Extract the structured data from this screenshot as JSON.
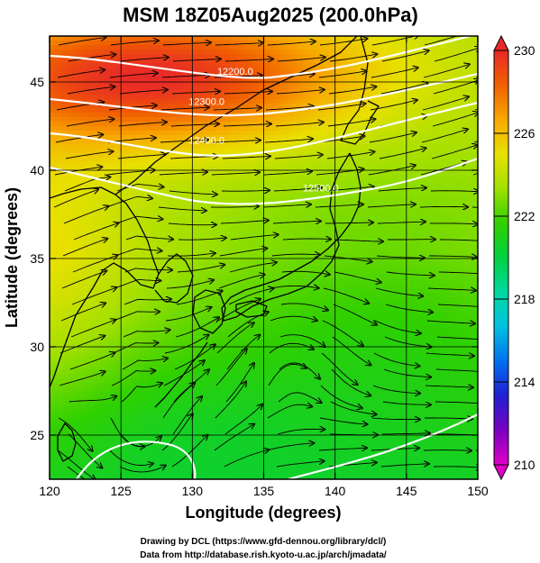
{
  "title": "MSM 18Z05Aug2025 (200.0hPa)",
  "chart_data": {
    "type": "heatmap",
    "xlabel": "Longitude (degrees)",
    "ylabel": "Latitude  (degrees)",
    "xlim": [
      120,
      150
    ],
    "ylim": [
      22.5,
      47.6
    ],
    "x_ticks": [
      120,
      125,
      130,
      135,
      140,
      145,
      150
    ],
    "y_ticks": [
      25,
      30,
      35,
      40,
      45
    ],
    "x_tick_labels": [
      "120",
      "125",
      "130",
      "135",
      "140",
      "145",
      "150"
    ],
    "y_tick_labels": [
      "25",
      "30",
      "35",
      "40",
      "45"
    ],
    "grid": true,
    "colorbar": {
      "min": 210,
      "max": 230,
      "ticks": [
        210,
        214,
        218,
        222,
        226,
        230
      ],
      "tick_labels": [
        "210",
        "214",
        "218",
        "222",
        "226",
        "230"
      ],
      "colors": [
        "#e000c8",
        "#7a00c0",
        "#2020d0",
        "#0070f0",
        "#00c0e0",
        "#00d8a0",
        "#00d040",
        "#30d000",
        "#a0e000",
        "#e8e000",
        "#f8a800",
        "#f06000",
        "#e82828"
      ]
    },
    "contours": [
      {
        "label": "12200.0",
        "lon": 133,
        "lat": 45.4
      },
      {
        "label": "12300.0",
        "lon": 131,
        "lat": 43.7
      },
      {
        "label": "12400.0",
        "lon": 131,
        "lat": 41.5
      },
      {
        "label": "12500.0",
        "lon": 139,
        "lat": 38.8
      }
    ]
  },
  "credits": {
    "line1": "Drawing by DCL (https://www.gfd-dennou.org/library/dcl/)",
    "line2": "Data from http://database.rish.kyoto-u.ac.jp/arch/jmadata/"
  }
}
